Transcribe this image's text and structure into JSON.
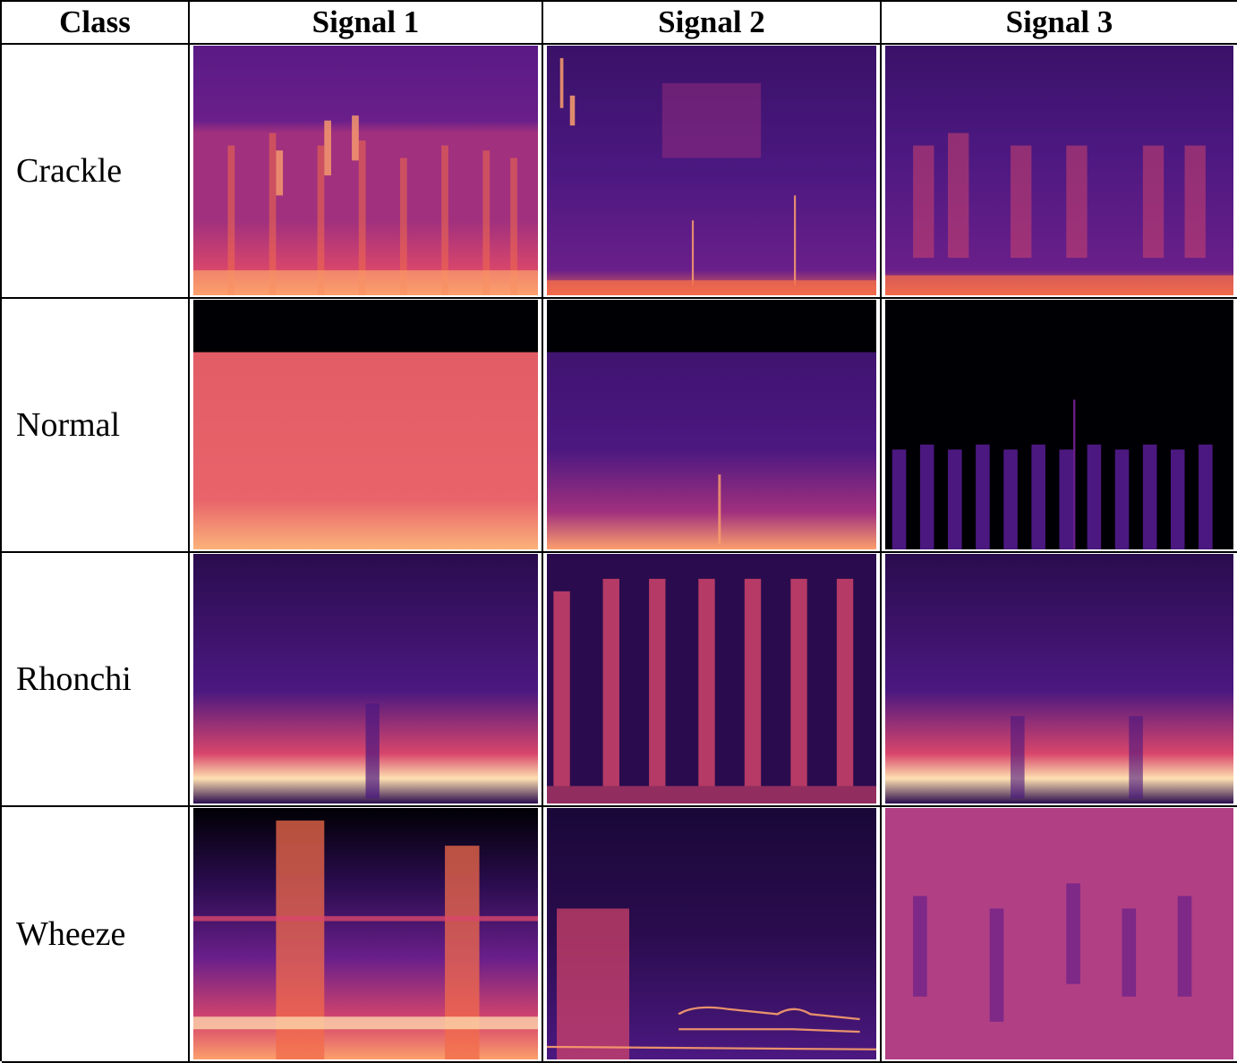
{
  "table": {
    "headers": [
      "Class",
      "Signal 1",
      "Signal 2",
      "Signal 3"
    ],
    "rows": [
      {
        "label": "Crackle",
        "cells": [
          "crackle-signal-1-spectrogram",
          "crackle-signal-2-spectrogram",
          "crackle-signal-3-spectrogram"
        ]
      },
      {
        "label": "Normal",
        "cells": [
          "normal-signal-1-spectrogram",
          "normal-signal-2-spectrogram",
          "normal-signal-3-spectrogram"
        ]
      },
      {
        "label": "Rhonchi",
        "cells": [
          "rhonchi-signal-1-spectrogram",
          "rhonchi-signal-2-spectrogram",
          "rhonchi-signal-3-spectrogram"
        ]
      },
      {
        "label": "Wheeze",
        "cells": [
          "wheeze-signal-1-spectrogram",
          "wheeze-signal-2-spectrogram",
          "wheeze-signal-3-spectrogram"
        ]
      }
    ]
  },
  "colors": {
    "black": "#000004",
    "deep_purple": "#2a0c4e",
    "purple": "#4b1880",
    "violet": "#6a1f8a",
    "magenta": "#a1307e",
    "pink": "#d8466b",
    "orange": "#f26b4b",
    "peach": "#fb9f6c",
    "cream": "#fde0b0",
    "mauve": "#b03f84"
  }
}
